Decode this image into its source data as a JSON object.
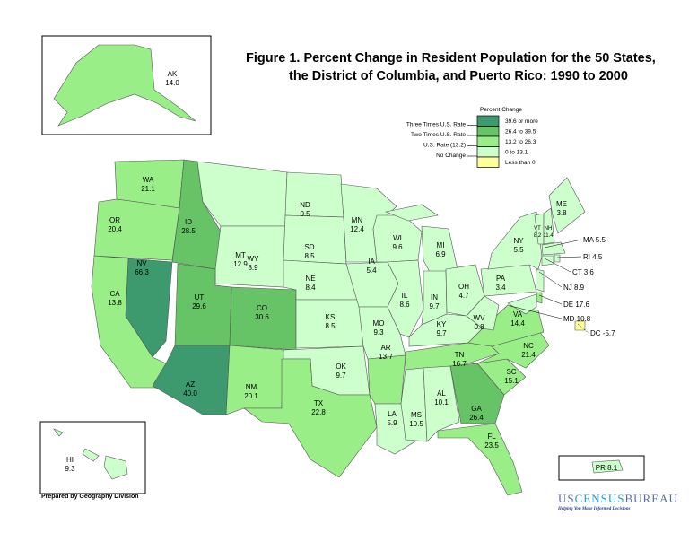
{
  "title": {
    "line1": "Figure 1.  Percent Change in Resident Population for the 50 States,",
    "line2": "the District of Columbia, and Puerto Rico: 1990 to 2000"
  },
  "legend": {
    "heading": "Percent Change",
    "classes": [
      {
        "label": "39.6 or more",
        "color": "#3d9a6e",
        "marker": "Three Times U.S. Rate"
      },
      {
        "label": "26.4 to 39.5",
        "color": "#66c466",
        "marker": "Two Times U.S. Rate"
      },
      {
        "label": "13.2 to 26.3",
        "color": "#99ee88",
        "marker": "U.S. Rate (13.2)"
      },
      {
        "label": "0 to 13.1",
        "color": "#ccffcc",
        "marker": "No Change"
      },
      {
        "label": "Less than 0",
        "color": "#ffff99"
      }
    ]
  },
  "states": [
    {
      "abbr": "AK",
      "value": "14.0"
    },
    {
      "abbr": "HI",
      "value": "9.3"
    },
    {
      "abbr": "PR",
      "value": "8.1"
    },
    {
      "abbr": "WA",
      "value": "21.1"
    },
    {
      "abbr": "OR",
      "value": "20.4"
    },
    {
      "abbr": "CA",
      "value": "13.8"
    },
    {
      "abbr": "ID",
      "value": "28.5"
    },
    {
      "abbr": "NV",
      "value": "66.3"
    },
    {
      "abbr": "MT",
      "value": "12.9"
    },
    {
      "abbr": "WY",
      "value": "8.9"
    },
    {
      "abbr": "UT",
      "value": "29.6"
    },
    {
      "abbr": "CO",
      "value": "30.6"
    },
    {
      "abbr": "AZ",
      "value": "40.0"
    },
    {
      "abbr": "NM",
      "value": "20.1"
    },
    {
      "abbr": "ND",
      "value": "0.5"
    },
    {
      "abbr": "SD",
      "value": "8.5"
    },
    {
      "abbr": "NE",
      "value": "8.4"
    },
    {
      "abbr": "KS",
      "value": "8.5"
    },
    {
      "abbr": "OK",
      "value": "9.7"
    },
    {
      "abbr": "TX",
      "value": "22.8"
    },
    {
      "abbr": "MN",
      "value": "12.4"
    },
    {
      "abbr": "IA",
      "value": "5.4"
    },
    {
      "abbr": "MO",
      "value": "9.3"
    },
    {
      "abbr": "AR",
      "value": "13.7"
    },
    {
      "abbr": "LA",
      "value": "5.9"
    },
    {
      "abbr": "WI",
      "value": "9.6"
    },
    {
      "abbr": "IL",
      "value": "8.6"
    },
    {
      "abbr": "MI",
      "value": "6.9"
    },
    {
      "abbr": "IN",
      "value": "9.7"
    },
    {
      "abbr": "OH",
      "value": "4.7"
    },
    {
      "abbr": "KY",
      "value": "9.7"
    },
    {
      "abbr": "TN",
      "value": "16.7"
    },
    {
      "abbr": "MS",
      "value": "10.5"
    },
    {
      "abbr": "AL",
      "value": "10.1"
    },
    {
      "abbr": "GA",
      "value": "26.4"
    },
    {
      "abbr": "FL",
      "value": "23.5"
    },
    {
      "abbr": "SC",
      "value": "15.1"
    },
    {
      "abbr": "NC",
      "value": "21.4"
    },
    {
      "abbr": "VA",
      "value": "14.4"
    },
    {
      "abbr": "WV",
      "value": "0.8"
    },
    {
      "abbr": "PA",
      "value": "3.4"
    },
    {
      "abbr": "NY",
      "value": "5.5"
    },
    {
      "abbr": "VT",
      "value": "8.2"
    },
    {
      "abbr": "NH",
      "value": "11.4"
    },
    {
      "abbr": "ME",
      "value": "3.8"
    },
    {
      "abbr": "MA",
      "value": "5.5"
    },
    {
      "abbr": "RI",
      "value": "4.5"
    },
    {
      "abbr": "CT",
      "value": "3.6"
    },
    {
      "abbr": "NJ",
      "value": "8.9"
    },
    {
      "abbr": "DE",
      "value": "17.6"
    },
    {
      "abbr": "MD",
      "value": "10.8"
    },
    {
      "abbr": "DC",
      "value": "-5.7"
    }
  ],
  "credit": "Prepared by Geography Division",
  "logo": {
    "part1": "US",
    "part2": "CENSUS",
    "part3": "BUREAU",
    "tagline": "Helping You Make Informed Decisions"
  }
}
